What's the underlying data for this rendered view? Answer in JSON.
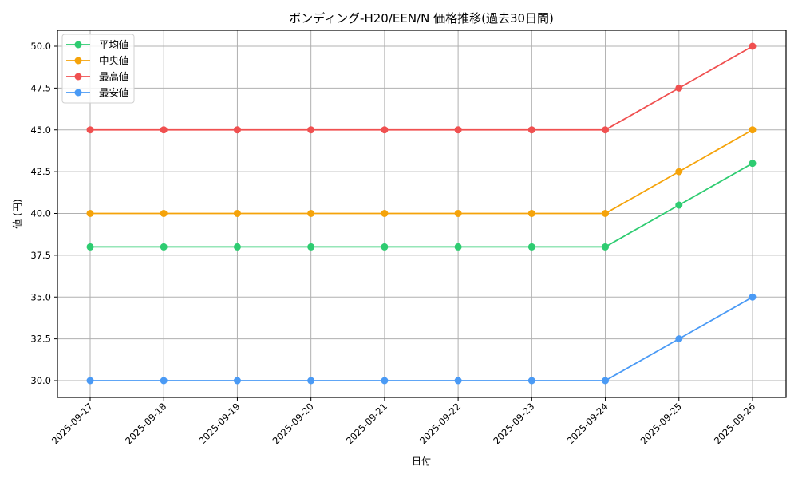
{
  "chart_data": {
    "type": "line",
    "title": "ボンディング-H20/EEN/N 価格推移(過去30日間)",
    "xlabel": "日付",
    "ylabel": "値 (円)",
    "categories": [
      "2025-09-17",
      "2025-09-18",
      "2025-09-19",
      "2025-09-20",
      "2025-09-21",
      "2025-09-22",
      "2025-09-23",
      "2025-09-24",
      "2025-09-25",
      "2025-09-26"
    ],
    "series": [
      {
        "name": "平均値",
        "color": "#2ecc71",
        "values": [
          38.0,
          38.0,
          38.0,
          38.0,
          38.0,
          38.0,
          38.0,
          38.0,
          40.5,
          43.0
        ]
      },
      {
        "name": "中央値",
        "color": "#f5a30a",
        "values": [
          40.0,
          40.0,
          40.0,
          40.0,
          40.0,
          40.0,
          40.0,
          40.0,
          42.5,
          45.0
        ]
      },
      {
        "name": "最高値",
        "color": "#f05050",
        "values": [
          45.0,
          45.0,
          45.0,
          45.0,
          45.0,
          45.0,
          45.0,
          45.0,
          47.5,
          50.0
        ]
      },
      {
        "name": "最安値",
        "color": "#4a9af5",
        "values": [
          30.0,
          30.0,
          30.0,
          30.0,
          30.0,
          30.0,
          30.0,
          30.0,
          32.5,
          35.0
        ]
      }
    ],
    "ylim": [
      29.0,
      51.0
    ],
    "yticks": [
      "30.0",
      "32.5",
      "35.0",
      "37.5",
      "40.0",
      "42.5",
      "45.0",
      "47.5",
      "50.0"
    ],
    "grid": true,
    "legend_position": "upper left",
    "marker": "circle"
  }
}
